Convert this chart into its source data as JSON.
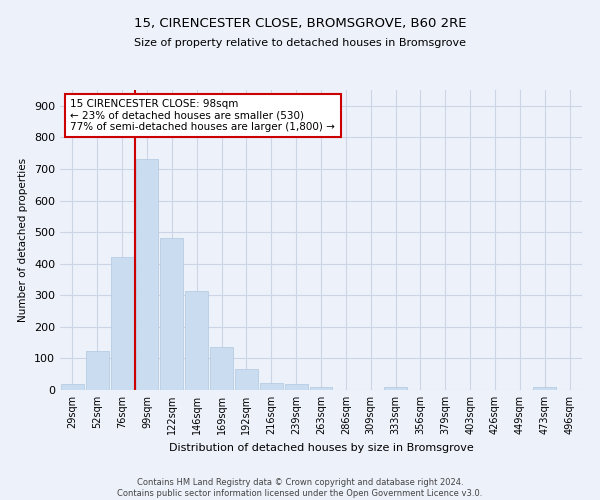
{
  "title": "15, CIRENCESTER CLOSE, BROMSGROVE, B60 2RE",
  "subtitle": "Size of property relative to detached houses in Bromsgrove",
  "xlabel": "Distribution of detached houses by size in Bromsgrove",
  "ylabel": "Number of detached properties",
  "categories": [
    "29sqm",
    "52sqm",
    "76sqm",
    "99sqm",
    "122sqm",
    "146sqm",
    "169sqm",
    "192sqm",
    "216sqm",
    "239sqm",
    "263sqm",
    "286sqm",
    "309sqm",
    "333sqm",
    "356sqm",
    "379sqm",
    "403sqm",
    "426sqm",
    "449sqm",
    "473sqm",
    "496sqm"
  ],
  "values": [
    20,
    122,
    420,
    730,
    480,
    315,
    135,
    68,
    23,
    20,
    8,
    0,
    0,
    8,
    0,
    0,
    0,
    0,
    0,
    8,
    0
  ],
  "bar_color": "#c9dcf0",
  "bar_edge_color": "#b0c8e0",
  "vline_color": "#cc0000",
  "annotation_text": "15 CIRENCESTER CLOSE: 98sqm\n← 23% of detached houses are smaller (530)\n77% of semi-detached houses are larger (1,800) →",
  "annotation_box_color": "#cc0000",
  "ylim": [
    0,
    950
  ],
  "yticks": [
    0,
    100,
    200,
    300,
    400,
    500,
    600,
    700,
    800,
    900
  ],
  "grid_color": "#ccd5e5",
  "background_color": "#edf1f9",
  "footnote": "Contains HM Land Registry data © Crown copyright and database right 2024.\nContains public sector information licensed under the Open Government Licence v3.0."
}
